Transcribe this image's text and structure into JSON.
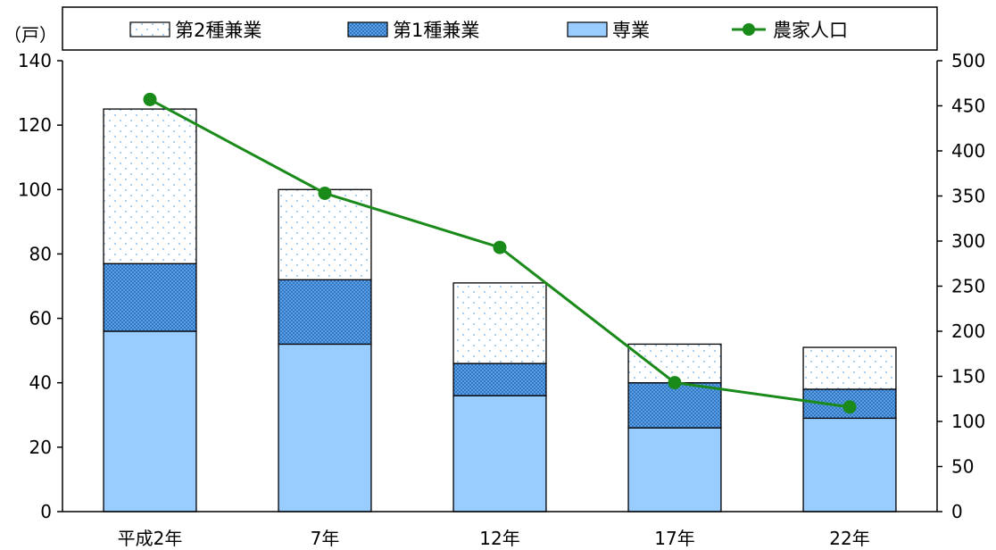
{
  "chart_data": {
    "type": "bar",
    "stacked": true,
    "categories": [
      "平成2年",
      "7年",
      "12年",
      "17年",
      "22年"
    ],
    "series": [
      {
        "name": "専業",
        "axis": "left",
        "kind": "bar",
        "pattern": "solid",
        "values": [
          56,
          52,
          36,
          26,
          29
        ],
        "color": "#99ccff"
      },
      {
        "name": "第1種兼業",
        "axis": "left",
        "kind": "bar",
        "pattern": "checker",
        "values": [
          21,
          20,
          10,
          14,
          9
        ],
        "color": "#3a86d4"
      },
      {
        "name": "第2種兼業",
        "axis": "left",
        "kind": "bar",
        "pattern": "dots",
        "values": [
          48,
          28,
          25,
          12,
          13
        ],
        "color": "#ffffff"
      },
      {
        "name": "農家人口",
        "axis": "right",
        "kind": "line",
        "values": [
          457,
          353,
          293,
          143,
          116
        ],
        "color": "#1a8a1a"
      }
    ],
    "y_unit_label": "（戸）",
    "ylim": [
      0,
      140
    ],
    "yticks": [
      0,
      20,
      40,
      60,
      80,
      100,
      120,
      140
    ],
    "y2lim": [
      0,
      500
    ],
    "y2ticks": [
      0,
      50,
      100,
      150,
      200,
      250,
      300,
      350,
      400,
      450,
      500
    ],
    "legend_order": [
      "第2種兼業",
      "第1種兼業",
      "専業",
      "農家人口"
    ],
    "legend_placement": "top",
    "grid": false
  }
}
